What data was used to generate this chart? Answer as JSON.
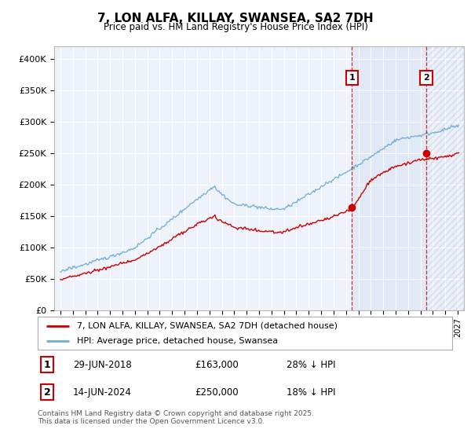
{
  "title": "7, LON ALFA, KILLAY, SWANSEA, SA2 7DH",
  "subtitle": "Price paid vs. HM Land Registry's House Price Index (HPI)",
  "ylim": [
    0,
    420000
  ],
  "yticks": [
    0,
    50000,
    100000,
    150000,
    200000,
    250000,
    300000,
    350000,
    400000
  ],
  "ytick_labels": [
    "£0",
    "£50K",
    "£100K",
    "£150K",
    "£200K",
    "£250K",
    "£300K",
    "£350K",
    "£400K"
  ],
  "hpi_color": "#6baed6",
  "price_color": "#cc0000",
  "marker1_x": 2018.49,
  "marker1_y": 163000,
  "marker2_x": 2024.45,
  "marker2_y": 250000,
  "legend_label1": "7, LON ALFA, KILLAY, SWANSEA, SA2 7DH (detached house)",
  "legend_label2": "HPI: Average price, detached house, Swansea",
  "annotation1_date": "29-JUN-2018",
  "annotation1_price": "£163,000",
  "annotation1_hpi": "28% ↓ HPI",
  "annotation2_date": "14-JUN-2024",
  "annotation2_price": "£250,000",
  "annotation2_hpi": "18% ↓ HPI",
  "footer": "Contains HM Land Registry data © Crown copyright and database right 2025.\nThis data is licensed under the Open Government Licence v3.0.",
  "background_color": "#eef2fa",
  "shaded_color": "#dce6f5",
  "grid_color": "#ffffff",
  "xlim": [
    1994.5,
    2027.5
  ]
}
